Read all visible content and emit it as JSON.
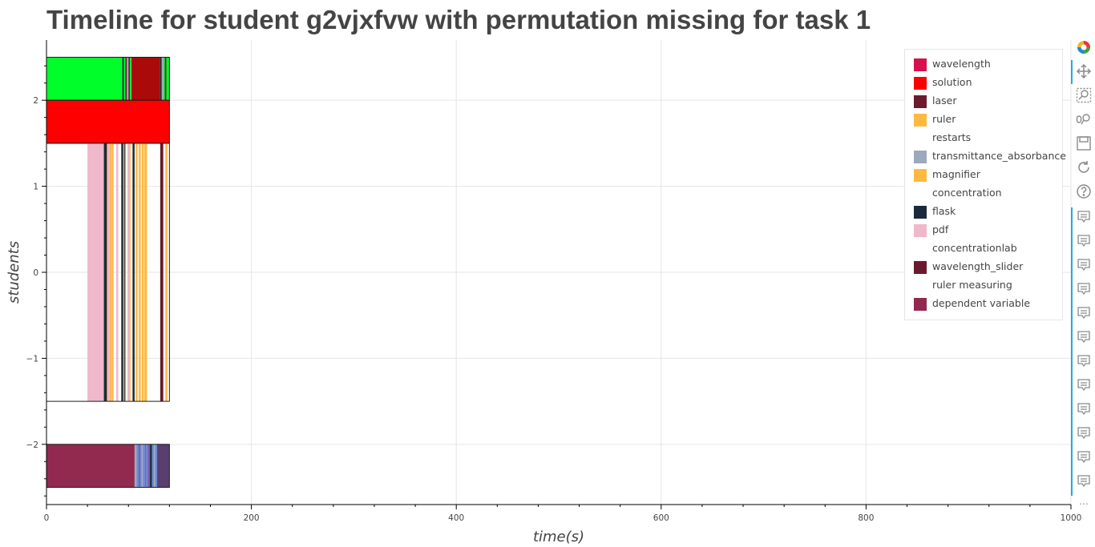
{
  "title": "Timeline for student g2vjxfvw with permutation missing for task 1",
  "chart_data": {
    "type": "timeline",
    "title": "Timeline for student g2vjxfvw with permutation missing for task 1",
    "xlabel": "time(s)",
    "ylabel": "students",
    "xlim": [
      0,
      1000
    ],
    "ylim": [
      -2.7,
      2.7
    ],
    "x_ticks": [
      "0",
      "200",
      "400",
      "600",
      "800",
      "1000"
    ],
    "y_ticks": [
      "−2",
      "−1",
      "0",
      "1",
      "2"
    ],
    "grid": true,
    "legend_position": "top-right",
    "legend": [
      {
        "label": "wavelength",
        "color": "#d6104f"
      },
      {
        "label": "solution",
        "color": "#ff0000"
      },
      {
        "label": "laser",
        "color": "#6b1b2e"
      },
      {
        "label": "ruler",
        "color": "#ffb940"
      },
      {
        "label": "restarts",
        "color": "#ffffff"
      },
      {
        "label": "transmittance_absorbance",
        "color": "#9ca9bd"
      },
      {
        "label": "magnifier",
        "color": "#ffb940"
      },
      {
        "label": "concentration",
        "color": "#ffffff"
      },
      {
        "label": "flask",
        "color": "#1a2a3a"
      },
      {
        "label": "pdf",
        "color": "#efb8cb"
      },
      {
        "label": "concentrationlab",
        "color": "#ffffff"
      },
      {
        "label": "wavelength_slider",
        "color": "#6b1a2e"
      },
      {
        "label": "ruler measuring",
        "color": "#ffffff"
      },
      {
        "label": "dependent variable",
        "color": "#922a50"
      }
    ],
    "rows": [
      {
        "y0": 2.0,
        "y1": 2.5,
        "outline": [
          0,
          120
        ],
        "segments": [
          {
            "start": 0,
            "end": 74,
            "color": "#00ff2a"
          },
          {
            "start": 74,
            "end": 75.5,
            "color": "#1a2a3a"
          },
          {
            "start": 75.5,
            "end": 77,
            "color": "#00ff2a"
          },
          {
            "start": 77,
            "end": 78.5,
            "color": "#6b1b2e"
          },
          {
            "start": 78.5,
            "end": 80,
            "color": "#9ca9bd"
          },
          {
            "start": 80,
            "end": 81.5,
            "color": "#6b1b2e"
          },
          {
            "start": 81.5,
            "end": 83,
            "color": "#00ff2a"
          },
          {
            "start": 83,
            "end": 111,
            "color": "#aa0a0a"
          },
          {
            "start": 111,
            "end": 112.5,
            "color": "#1a2a3a"
          },
          {
            "start": 112.5,
            "end": 114,
            "color": "#9ca9bd"
          },
          {
            "start": 114,
            "end": 115.5,
            "color": "#00ff2a"
          },
          {
            "start": 115.5,
            "end": 117,
            "color": "#6b1b2e"
          },
          {
            "start": 117,
            "end": 120,
            "color": "#00ff2a"
          }
        ]
      },
      {
        "y0": 1.5,
        "y1": 2.0,
        "outline": [
          0,
          120
        ],
        "segments": [
          {
            "start": 0,
            "end": 120,
            "color": "#ff0000"
          }
        ]
      },
      {
        "y0": -1.5,
        "y1": 1.5,
        "outline": [
          0,
          120
        ],
        "segments": [
          {
            "start": 40,
            "end": 56,
            "color": "#efb8cb"
          },
          {
            "start": 56,
            "end": 59,
            "color": "#1a2a3a"
          },
          {
            "start": 59,
            "end": 60,
            "color": "#ffb940"
          },
          {
            "start": 60,
            "end": 61.5,
            "color": "#efb8cb"
          },
          {
            "start": 61.5,
            "end": 63,
            "color": "#ffb940"
          },
          {
            "start": 63,
            "end": 64,
            "color": "#efb8cb"
          },
          {
            "start": 64,
            "end": 65.5,
            "color": "#ffb940"
          },
          {
            "start": 68,
            "end": 70,
            "color": "#efb8cb"
          },
          {
            "start": 73,
            "end": 75,
            "color": "#1a2a3a"
          },
          {
            "start": 75,
            "end": 76,
            "color": "#ffb940"
          },
          {
            "start": 76,
            "end": 77,
            "color": "#1a2a3a"
          },
          {
            "start": 79,
            "end": 81,
            "color": "#efb8cb"
          },
          {
            "start": 81,
            "end": 82,
            "color": "#ffb940"
          },
          {
            "start": 84,
            "end": 86,
            "color": "#1a2a3a"
          },
          {
            "start": 87,
            "end": 89,
            "color": "#ffb940"
          },
          {
            "start": 90,
            "end": 92,
            "color": "#ffb940"
          },
          {
            "start": 93,
            "end": 95,
            "color": "#ffb940"
          },
          {
            "start": 95.5,
            "end": 98,
            "color": "#ffb940"
          },
          {
            "start": 111,
            "end": 114,
            "color": "#6b1a2e"
          },
          {
            "start": 116,
            "end": 118,
            "color": "#ffb940"
          }
        ]
      },
      {
        "y0": -2.5,
        "y1": -2.0,
        "outline": [
          0,
          120
        ],
        "segments": [
          {
            "start": 0,
            "end": 86,
            "color": "#922a50"
          },
          {
            "start": 86,
            "end": 88,
            "color": "#9ca9bd"
          },
          {
            "start": 88,
            "end": 90,
            "color": "#6c8ad6"
          },
          {
            "start": 90,
            "end": 91.5,
            "color": "#7e5aa0"
          },
          {
            "start": 91.5,
            "end": 93,
            "color": "#6c8ad6"
          },
          {
            "start": 93,
            "end": 94,
            "color": "#9ca9bd"
          },
          {
            "start": 94,
            "end": 96,
            "color": "#6c8ad6"
          },
          {
            "start": 96,
            "end": 97,
            "color": "#7e5aa0"
          },
          {
            "start": 97,
            "end": 99,
            "color": "#6c8ad6"
          },
          {
            "start": 99,
            "end": 101,
            "color": "#7e5aa0"
          },
          {
            "start": 101,
            "end": 103,
            "color": "#1a2a3a"
          },
          {
            "start": 103,
            "end": 105,
            "color": "#6c8ad6"
          },
          {
            "start": 105,
            "end": 106,
            "color": "#9ca9bd"
          },
          {
            "start": 106,
            "end": 108,
            "color": "#6c8ad6"
          },
          {
            "start": 108,
            "end": 120,
            "color": "#5a3e6e"
          }
        ]
      }
    ]
  },
  "toolbar": {
    "tools": [
      {
        "name": "bokeh-logo-icon",
        "kind": "logo"
      },
      {
        "name": "pan-icon",
        "kind": "pan"
      },
      {
        "name": "box-zoom-icon",
        "kind": "boxzoom"
      },
      {
        "name": "wheel-zoom-icon",
        "kind": "wheelzoom"
      },
      {
        "name": "save-icon",
        "kind": "save"
      },
      {
        "name": "reset-icon",
        "kind": "reset"
      },
      {
        "name": "help-icon",
        "kind": "help"
      },
      {
        "name": "hover-icon",
        "kind": "hover"
      },
      {
        "name": "hover-icon",
        "kind": "hover"
      },
      {
        "name": "hover-icon",
        "kind": "hover"
      },
      {
        "name": "hover-icon",
        "kind": "hover"
      },
      {
        "name": "hover-icon",
        "kind": "hover"
      },
      {
        "name": "hover-icon",
        "kind": "hover"
      },
      {
        "name": "hover-icon",
        "kind": "hover"
      },
      {
        "name": "hover-icon",
        "kind": "hover"
      },
      {
        "name": "hover-icon",
        "kind": "hover"
      },
      {
        "name": "hover-icon",
        "kind": "hover"
      },
      {
        "name": "hover-icon",
        "kind": "hover"
      },
      {
        "name": "hover-icon",
        "kind": "hover"
      }
    ],
    "more_label": "⋯"
  }
}
